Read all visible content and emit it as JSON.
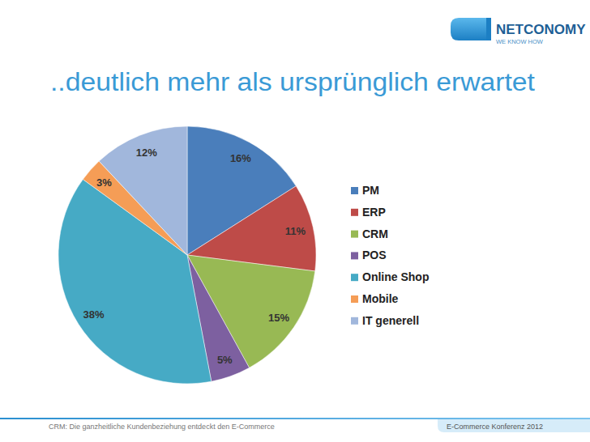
{
  "header": {
    "logo": "NETCONOMY",
    "tagline": "WE KNOW HOW"
  },
  "chart_data": {
    "type": "pie",
    "title": "..deutlich mehr als ursprünglich erwartet",
    "categories": [
      "PM",
      "ERP",
      "CRM",
      "POS",
      "Online Shop",
      "Mobile",
      "IT generell"
    ],
    "values": [
      16,
      11,
      15,
      5,
      38,
      3,
      12
    ],
    "value_labels": [
      "16%",
      "11%",
      "15%",
      "5%",
      "38%",
      "3%",
      "12%"
    ],
    "colors": [
      "#4a7ebb",
      "#be4b48",
      "#98b954",
      "#7d60a0",
      "#46aac5",
      "#f59d56",
      "#a1b7dc"
    ],
    "data_labels": true,
    "legend": "right"
  },
  "footer": {
    "left": "CRM: Die ganzheitliche Kundenbeziehung entdeckt den E-Commerce",
    "right": "E-Commerce Konferenz 2012"
  }
}
